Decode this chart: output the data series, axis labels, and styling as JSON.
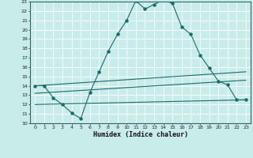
{
  "xlabel": "Humidex (Indice chaleur)",
  "xlim": [
    -0.5,
    23.5
  ],
  "ylim": [
    10,
    23
  ],
  "xticks": [
    0,
    1,
    2,
    3,
    4,
    5,
    6,
    7,
    8,
    9,
    10,
    11,
    12,
    13,
    14,
    15,
    16,
    17,
    18,
    19,
    20,
    21,
    22,
    23
  ],
  "yticks": [
    10,
    11,
    12,
    13,
    14,
    15,
    16,
    17,
    18,
    19,
    20,
    21,
    22,
    23
  ],
  "bg_color": "#c8ece9",
  "grid_color": "#aad8d3",
  "line_color": "#1a6b6b",
  "main_curve_x": [
    0,
    1,
    2,
    3,
    4,
    5,
    6,
    7,
    8,
    9,
    10,
    11,
    12,
    13,
    14,
    15,
    16,
    17,
    18,
    19,
    20,
    21,
    22,
    23
  ],
  "main_curve_y": [
    14.0,
    14.0,
    12.7,
    12.0,
    11.1,
    10.5,
    13.3,
    15.5,
    17.7,
    19.5,
    21.0,
    23.1,
    22.2,
    22.7,
    23.2,
    22.8,
    20.3,
    19.5,
    17.3,
    15.9,
    14.5,
    14.1,
    12.5,
    12.5
  ],
  "upper_line2_x": [
    0,
    23
  ],
  "upper_line2_y": [
    13.8,
    15.5
  ],
  "lower_line_x": [
    0,
    23
  ],
  "lower_line_y": [
    12.0,
    12.5
  ]
}
